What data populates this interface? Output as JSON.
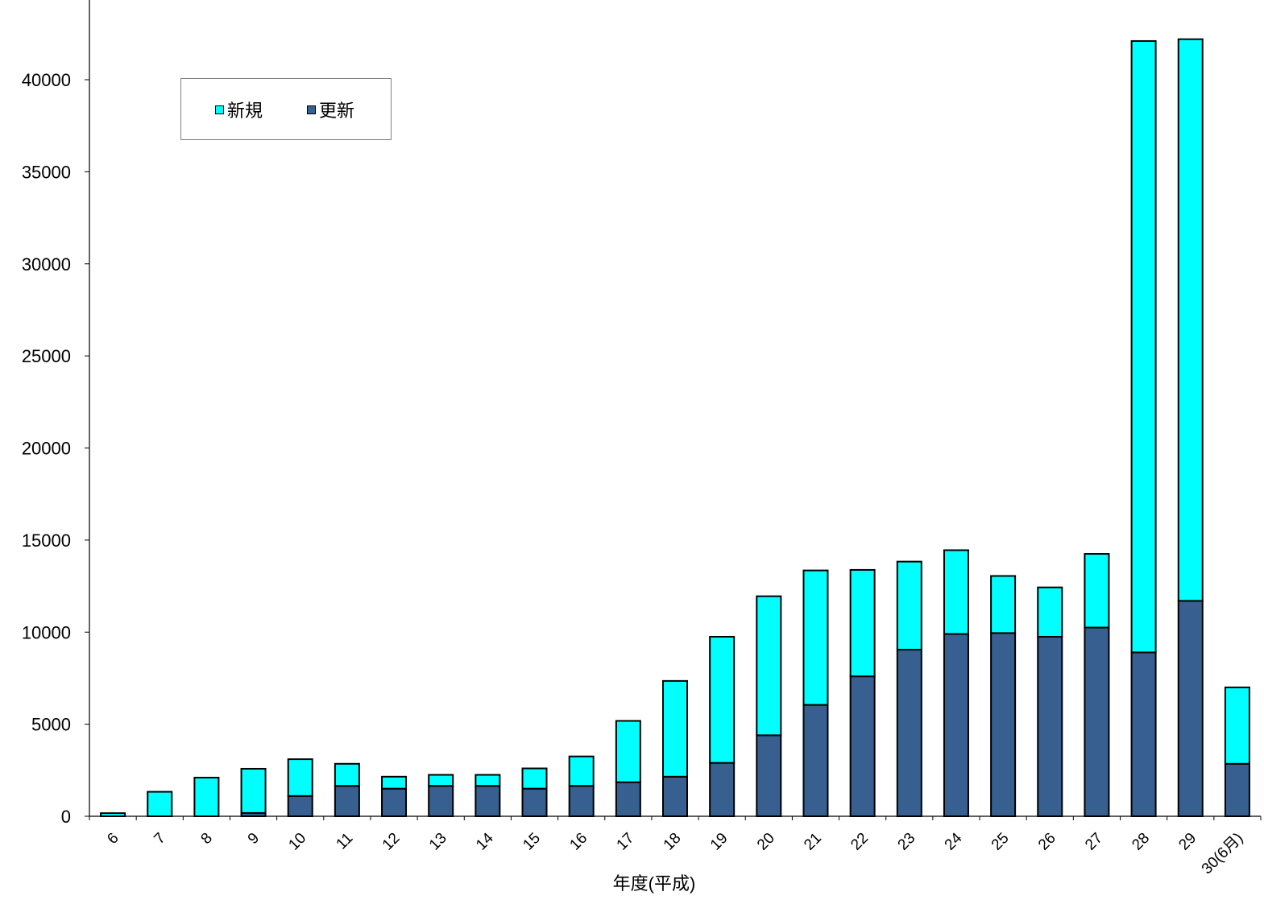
{
  "chart_data": {
    "type": "bar",
    "stacked": true,
    "xlabel": "年度(平成)",
    "ylabel": "",
    "ylim": [
      0,
      44000
    ],
    "yticks": [
      0,
      5000,
      10000,
      15000,
      20000,
      25000,
      30000,
      35000,
      40000
    ],
    "categories": [
      "6",
      "7",
      "8",
      "9",
      "10",
      "11",
      "12",
      "13",
      "14",
      "15",
      "16",
      "17",
      "18",
      "19",
      "20",
      "21",
      "22",
      "23",
      "24",
      "25",
      "26",
      "27",
      "28",
      "29",
      "30(6月)"
    ],
    "series": [
      {
        "name": "更新",
        "color": "#375F8F",
        "values": [
          0,
          0,
          0,
          180,
          1100,
          1650,
          1500,
          1650,
          1650,
          1500,
          1650,
          1850,
          2150,
          2900,
          4400,
          6050,
          7600,
          9050,
          9900,
          9950,
          9750,
          10250,
          8900,
          11700,
          2850
        ]
      },
      {
        "name": "新規",
        "color": "#00FFFF",
        "values": [
          170,
          1330,
          2100,
          2400,
          2000,
          1200,
          650,
          600,
          600,
          1100,
          1600,
          3330,
          5200,
          6850,
          7550,
          7300,
          5780,
          4780,
          4550,
          3100,
          2680,
          4000,
          33200,
          30500,
          4150
        ]
      }
    ],
    "legend": {
      "position": "top-left",
      "order": [
        "新規",
        "更新"
      ]
    },
    "grid": false
  }
}
